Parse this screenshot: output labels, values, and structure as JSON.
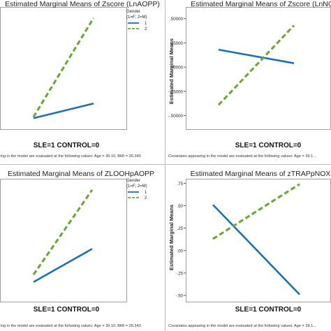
{
  "colors": {
    "series_1": "#1f6fb5",
    "series_2": "#6aa636",
    "axis": "#555555",
    "frame": "#9e9e9e"
  },
  "chart_data": [
    {
      "type": "line",
      "title": "Estimated Marginal Means of Zscore (LnAOPP)",
      "xlabel": "SLE=1  CONTROL=0",
      "ylabel": "",
      "categories": [
        "0",
        "1"
      ],
      "x": [
        0,
        1
      ],
      "ylim": [
        0,
        1
      ],
      "yticks": [],
      "grid": false,
      "legend": {
        "title_lines": [
          "Gender",
          "(1=F; 2=M)"
        ],
        "entries": [
          "1",
          "2"
        ],
        "placement": "top-right"
      },
      "footnote": "...ring in the model are evaluated at the following values: Age = 39.10,  BMI = 26.340",
      "series": [
        {
          "name": "1",
          "values": [
            0.09,
            0.21
          ]
        },
        {
          "name": "2",
          "values": [
            0.1,
            0.91
          ]
        }
      ]
    },
    {
      "type": "line",
      "title": "Estimated Marginal Means of Zscore (LnNO...",
      "xlabel": "SLE=1  CONTROL=0",
      "ylabel": "Estimated Marginal Means",
      "categories": [
        "0",
        "1"
      ],
      "x": [
        0,
        1
      ],
      "ylim": [
        -0.64,
        0.62
      ],
      "yticks": [
        {
          "value": 0.5,
          "label": ".50000"
        },
        {
          "value": 0.25,
          "label": ".25000"
        },
        {
          "value": 0.0,
          "label": ".00000"
        },
        {
          "value": -0.25,
          "label": "-.25000"
        },
        {
          "value": -0.5,
          "label": "-.50000"
        }
      ],
      "grid": false,
      "legend": null,
      "footnote": "Covariates appearing in the model are evaluated at the following values: Age = 39.1...",
      "series": [
        {
          "name": "1",
          "values": [
            0.18,
            0.04
          ]
        },
        {
          "name": "2",
          "values": [
            -0.39,
            0.43
          ]
        }
      ]
    },
    {
      "type": "line",
      "title": "Estimated Marginal Means of ZLOOHpAOPP",
      "xlabel": "SLE=1  CONTROL=0",
      "ylabel": "",
      "categories": [
        "0",
        "1"
      ],
      "x": [
        0,
        1
      ],
      "ylim": [
        0,
        1
      ],
      "yticks": [],
      "grid": false,
      "legend": {
        "title_lines": [
          "Gender",
          "(1=F; 2=M)"
        ],
        "entries": [
          "1",
          "2"
        ],
        "placement": "top-right"
      },
      "footnote": "...ring in the model are evaluated at the following values: Age = 39.10,  BMI = 26.340",
      "series": [
        {
          "name": "1",
          "values": [
            0.16,
            0.43
          ]
        },
        {
          "name": "2",
          "values": [
            0.22,
            0.91
          ]
        }
      ]
    },
    {
      "type": "line",
      "title": "Estimated Marginal Means of zTRAPpNOX",
      "xlabel": "SLE=1  CONTROL=0",
      "ylabel": "Estimated Marginal Means",
      "categories": [
        "0",
        "1"
      ],
      "x": [
        0,
        1
      ],
      "ylim": [
        -0.57,
        0.8
      ],
      "yticks": [
        {
          "value": 0.75,
          "label": ".75"
        },
        {
          "value": 0.5,
          "label": ".50"
        },
        {
          "value": 0.25,
          "label": ".25"
        },
        {
          "value": 0.0,
          "label": ".00"
        },
        {
          "value": -0.25,
          "label": "-.25"
        },
        {
          "value": -0.5,
          "label": "-.50"
        }
      ],
      "grid": false,
      "legend": null,
      "footnote": "Covariates appearing in the model are evaluated at the following values: Age = 39.1...",
      "series": [
        {
          "name": "1",
          "values": [
            0.51,
            -0.49
          ]
        },
        {
          "name": "2",
          "values": [
            0.13,
            0.74
          ]
        }
      ]
    }
  ]
}
